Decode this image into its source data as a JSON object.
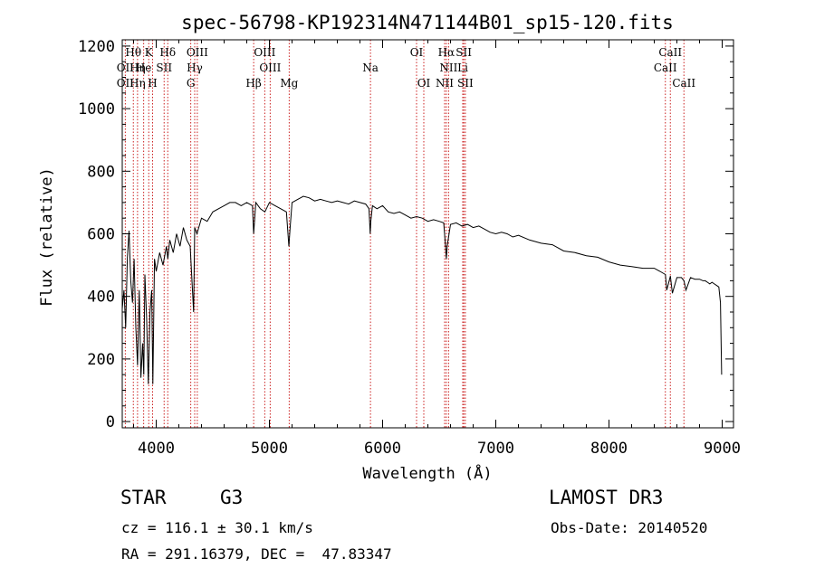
{
  "chart_data": {
    "type": "line",
    "title": "spec-56798-KP192314N471144B01_sp15-120.fits",
    "xlabel": "Wavelength (Å)",
    "ylabel": "Flux (relative)",
    "xlim": [
      3700,
      9100
    ],
    "ylim": [
      -20,
      1220
    ],
    "xticks": [
      4000,
      5000,
      6000,
      7000,
      8000,
      9000
    ],
    "yticks": [
      0,
      200,
      400,
      600,
      800,
      1000,
      1200
    ],
    "xtick_labels": [
      "4000",
      "5000",
      "6000",
      "7000",
      "8000",
      "9000"
    ],
    "ytick_labels": [
      "0",
      "200",
      "400",
      "600",
      "800",
      "1000",
      "1200"
    ],
    "grid": false,
    "series": [
      {
        "name": "spectrum",
        "color": "#000000",
        "x": [
          3700,
          3715,
          3730,
          3745,
          3760,
          3775,
          3790,
          3805,
          3820,
          3835,
          3850,
          3865,
          3880,
          3890,
          3900,
          3915,
          3930,
          3945,
          3960,
          3970,
          3985,
          4000,
          4030,
          4060,
          4090,
          4102,
          4120,
          4150,
          4180,
          4210,
          4240,
          4270,
          4300,
          4330,
          4340,
          4360,
          4400,
          4450,
          4500,
          4550,
          4600,
          4650,
          4700,
          4750,
          4800,
          4850,
          4861,
          4880,
          4920,
          4960,
          5000,
          5050,
          5100,
          5150,
          5172,
          5183,
          5200,
          5250,
          5300,
          5350,
          5400,
          5450,
          5500,
          5550,
          5600,
          5650,
          5700,
          5750,
          5800,
          5850,
          5880,
          5890,
          5896,
          5910,
          5950,
          6000,
          6050,
          6100,
          6150,
          6200,
          6250,
          6300,
          6350,
          6400,
          6450,
          6500,
          6540,
          6556,
          6563,
          6570,
          6600,
          6650,
          6700,
          6750,
          6800,
          6850,
          6900,
          6950,
          7000,
          7050,
          7100,
          7150,
          7200,
          7300,
          7400,
          7500,
          7600,
          7700,
          7800,
          7900,
          8000,
          8100,
          8200,
          8300,
          8400,
          8450,
          8498,
          8510,
          8542,
          8560,
          8600,
          8640,
          8662,
          8680,
          8720,
          8760,
          8800,
          8830,
          8850,
          8870,
          8890,
          8910,
          8930,
          8950,
          8970,
          8985,
          8995
        ],
        "y": [
          360,
          420,
          300,
          520,
          610,
          450,
          380,
          520,
          300,
          180,
          420,
          140,
          250,
          150,
          470,
          330,
          120,
          350,
          420,
          120,
          520,
          480,
          540,
          500,
          560,
          520,
          580,
          540,
          600,
          560,
          620,
          580,
          560,
          350,
          620,
          600,
          650,
          640,
          670,
          680,
          690,
          700,
          700,
          690,
          700,
          690,
          600,
          700,
          680,
          670,
          700,
          690,
          680,
          670,
          560,
          620,
          700,
          710,
          720,
          715,
          705,
          710,
          705,
          700,
          705,
          700,
          695,
          705,
          700,
          695,
          680,
          600,
          640,
          690,
          680,
          690,
          670,
          665,
          670,
          660,
          650,
          655,
          650,
          640,
          645,
          640,
          635,
          560,
          520,
          560,
          630,
          635,
          625,
          630,
          620,
          625,
          615,
          605,
          600,
          605,
          600,
          590,
          595,
          580,
          570,
          565,
          545,
          540,
          530,
          525,
          510,
          500,
          495,
          490,
          490,
          480,
          470,
          420,
          465,
          410,
          460,
          460,
          450,
          420,
          460,
          455,
          455,
          450,
          450,
          445,
          440,
          445,
          440,
          435,
          430,
          380,
          150
        ]
      }
    ],
    "lines": [
      {
        "label": "Hθ",
        "x": 3798,
        "row": 1
      },
      {
        "label": "K",
        "x": 3934,
        "row": 1
      },
      {
        "label": "Hδ",
        "x": 4102,
        "row": 1
      },
      {
        "label": "OIII",
        "x": 4363,
        "row": 1
      },
      {
        "label": "OIII",
        "x": 4959,
        "row": 1
      },
      {
        "label": "OI",
        "x": 6300,
        "row": 1
      },
      {
        "label": "Hα",
        "x": 6563,
        "row": 1
      },
      {
        "label": "SII",
        "x": 6717,
        "row": 1
      },
      {
        "label": "CaII",
        "x": 8542,
        "row": 1
      },
      {
        "label": "OII",
        "x": 3727,
        "row": 2
      },
      {
        "label": "Hη",
        "x": 3835,
        "row": 2
      },
      {
        "label": "He",
        "x": 3889,
        "row": 2
      },
      {
        "label": "SII",
        "x": 4070,
        "row": 2
      },
      {
        "label": "Hγ",
        "x": 4340,
        "row": 2
      },
      {
        "label": "OIII",
        "x": 5007,
        "row": 2
      },
      {
        "label": "Na",
        "x": 5893,
        "row": 2
      },
      {
        "label": "NII",
        "x": 6583,
        "row": 2
      },
      {
        "label": "Li",
        "x": 6708,
        "row": 2
      },
      {
        "label": "CaII",
        "x": 8498,
        "row": 2
      },
      {
        "label": "OII",
        "x": 3727,
        "row": 3
      },
      {
        "label": "Hη",
        "x": 3835,
        "row": 3
      },
      {
        "label": "H",
        "x": 3968,
        "row": 3
      },
      {
        "label": "G",
        "x": 4305,
        "row": 3
      },
      {
        "label": "Hβ",
        "x": 4861,
        "row": 3
      },
      {
        "label": "Mg",
        "x": 5175,
        "row": 3
      },
      {
        "label": "OI",
        "x": 6364,
        "row": 3
      },
      {
        "label": "NII",
        "x": 6548,
        "row": 3
      },
      {
        "label": "SII",
        "x": 6731,
        "row": 3
      },
      {
        "label": "CaII",
        "x": 8662,
        "row": 3
      }
    ],
    "line_color": "#cc2222"
  },
  "info": {
    "class_label": "STAR",
    "subclass": "G3",
    "survey": "LAMOST DR3",
    "redshift": "cz = 116.1 ± 30.1 km/s",
    "obs_date": "Obs-Date: 20140520",
    "coords": "RA = 291.16379, DEC =  47.83347"
  }
}
